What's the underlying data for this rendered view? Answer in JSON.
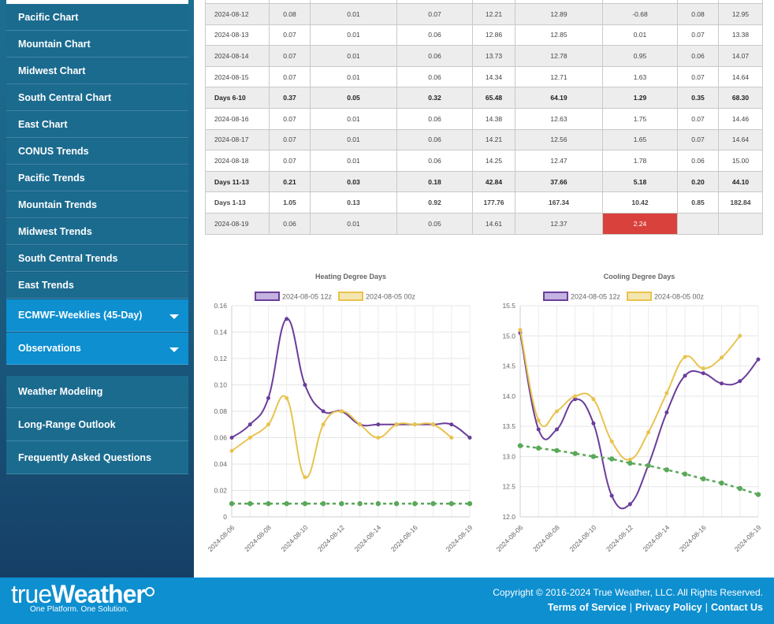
{
  "sidebar": {
    "chart_items": [
      "Pacific Chart",
      "Mountain Chart",
      "Midwest Chart",
      "South Central Chart",
      "East Chart",
      "CONUS Trends",
      "Pacific Trends",
      "Mountain Trends",
      "Midwest Trends",
      "South Central Trends",
      "East Trends"
    ],
    "accordions": [
      "ECMWF-Weeklies (45-Day)",
      "Observations"
    ],
    "links": [
      "Weather Modeling",
      "Long-Range Outlook",
      "Frequently Asked Questions"
    ]
  },
  "table": {
    "rows": [
      {
        "cells": [
          "2024-08-12",
          "0.08",
          "0.01",
          "0.07",
          "12.21",
          "12.89",
          "-0.68",
          "0.08",
          "12.95"
        ],
        "kind": "odd"
      },
      {
        "cells": [
          "2024-08-13",
          "0.07",
          "0.01",
          "0.06",
          "12.86",
          "12.85",
          "0.01",
          "0.07",
          "13.38"
        ],
        "kind": "even"
      },
      {
        "cells": [
          "2024-08-14",
          "0.07",
          "0.01",
          "0.06",
          "13.73",
          "12.78",
          "0.95",
          "0.06",
          "14.07"
        ],
        "kind": "odd"
      },
      {
        "cells": [
          "2024-08-15",
          "0.07",
          "0.01",
          "0.06",
          "14.34",
          "12.71",
          "1.63",
          "0.07",
          "14.64"
        ],
        "kind": "even"
      },
      {
        "cells": [
          "Days 6-10",
          "0.37",
          "0.05",
          "0.32",
          "65.48",
          "64.19",
          "1.29",
          "0.35",
          "68.30"
        ],
        "kind": "sum"
      },
      {
        "cells": [
          "2024-08-16",
          "0.07",
          "0.01",
          "0.06",
          "14.38",
          "12.63",
          "1.75",
          "0.07",
          "14.46"
        ],
        "kind": "even"
      },
      {
        "cells": [
          "2024-08-17",
          "0.07",
          "0.01",
          "0.06",
          "14.21",
          "12.56",
          "1.65",
          "0.07",
          "14.64"
        ],
        "kind": "odd"
      },
      {
        "cells": [
          "2024-08-18",
          "0.07",
          "0.01",
          "0.06",
          "14.25",
          "12.47",
          "1.78",
          "0.06",
          "15.00"
        ],
        "kind": "even"
      },
      {
        "cells": [
          "Days 11-13",
          "0.21",
          "0.03",
          "0.18",
          "42.84",
          "37.66",
          "5.18",
          "0.20",
          "44.10"
        ],
        "kind": "sum"
      },
      {
        "cells": [
          "Days 1-13",
          "1.05",
          "0.13",
          "0.92",
          "177.76",
          "167.34",
          "10.42",
          "0.85",
          "182.84"
        ],
        "kind": "even",
        "bold": true
      },
      {
        "cells": [
          "2024-08-19",
          "0.06",
          "0.01",
          "0.05",
          "14.61",
          "12.37",
          "2.24",
          "",
          ""
        ],
        "kind": "odd",
        "highlight_col": 6
      }
    ],
    "highlight_color": "#d9413d"
  },
  "chart_data": [
    {
      "type": "line",
      "title": "Heating Degree Days",
      "x": [
        "2024-08-06",
        "2024-08-07",
        "2024-08-08",
        "2024-08-09",
        "2024-08-10",
        "2024-08-11",
        "2024-08-12",
        "2024-08-13",
        "2024-08-14",
        "2024-08-15",
        "2024-08-16",
        "2024-08-17",
        "2024-08-18",
        "2024-08-19"
      ],
      "tick_labels": [
        "2024-08-06",
        "2024-08-08",
        "2024-08-10",
        "2024-08-12",
        "2024-08-14",
        "2024-08-16",
        "2024-08-19"
      ],
      "ylim": [
        0,
        0.16
      ],
      "yticks": [
        "0",
        "0.02",
        "0.04",
        "0.06",
        "0.08",
        "0.10",
        "0.12",
        "0.14",
        "0.16"
      ],
      "series": [
        {
          "name": "2024-08-05 12z",
          "color": "#6a3d9a",
          "fill": "#c3b3e0",
          "values": [
            0.06,
            0.07,
            0.09,
            0.15,
            0.1,
            0.08,
            0.08,
            0.07,
            0.07,
            0.07,
            0.07,
            0.07,
            0.07,
            0.06
          ]
        },
        {
          "name": "2024-08-05 00z",
          "color": "#e8c34f",
          "fill": "#f4e6b0",
          "values": [
            0.05,
            0.06,
            0.07,
            0.09,
            0.03,
            0.07,
            0.08,
            0.07,
            0.06,
            0.07,
            0.07,
            0.07,
            0.06,
            null
          ]
        },
        {
          "name": "",
          "color": "#5aa85a",
          "dashed": true,
          "values": [
            0.01,
            0.01,
            0.01,
            0.01,
            0.01,
            0.01,
            0.01,
            0.01,
            0.01,
            0.01,
            0.01,
            0.01,
            0.01,
            0.01
          ]
        }
      ]
    },
    {
      "type": "line",
      "title": "Cooling Degree Days",
      "x": [
        "2024-08-06",
        "2024-08-07",
        "2024-08-08",
        "2024-08-09",
        "2024-08-10",
        "2024-08-11",
        "2024-08-12",
        "2024-08-13",
        "2024-08-14",
        "2024-08-15",
        "2024-08-16",
        "2024-08-17",
        "2024-08-18",
        "2024-08-19"
      ],
      "tick_labels": [
        "2024-08-06",
        "2024-08-08",
        "2024-08-10",
        "2024-08-12",
        "2024-08-14",
        "2024-08-16",
        "2024-08-19"
      ],
      "ylim": [
        12.0,
        15.5
      ],
      "yticks": [
        "12.0",
        "12.5",
        "13.0",
        "13.5",
        "14.0",
        "14.5",
        "15.0",
        "15.5"
      ],
      "series": [
        {
          "name": "2024-08-05 12z",
          "color": "#6a3d9a",
          "fill": "#c3b3e0",
          "values": [
            15.05,
            13.45,
            13.45,
            13.95,
            13.55,
            12.35,
            12.21,
            12.86,
            13.73,
            14.34,
            14.38,
            14.21,
            14.25,
            14.61
          ]
        },
        {
          "name": "2024-08-05 00z",
          "color": "#e8c34f",
          "fill": "#f4e6b0",
          "values": [
            15.1,
            13.6,
            13.75,
            14.0,
            13.95,
            13.25,
            12.95,
            13.4,
            14.05,
            14.65,
            14.46,
            14.64,
            15.0,
            null
          ]
        },
        {
          "name": "",
          "color": "#5aa85a",
          "dashed": true,
          "values": [
            13.18,
            13.14,
            13.1,
            13.05,
            13.0,
            12.96,
            12.89,
            12.85,
            12.78,
            12.71,
            12.63,
            12.56,
            12.47,
            12.37
          ]
        }
      ]
    }
  ],
  "footer": {
    "logo_part1": "true",
    "logo_part2": "Weather",
    "tagline": "One Platform. One Solution.",
    "copyright": "Copyright © 2016-2024 True Weather, LLC. All Rights Reserved.",
    "links": [
      "Terms of Service",
      "Privacy Policy",
      "Contact Us"
    ],
    "link_separator": "|"
  },
  "colors": {
    "sidebar_bg": "#1b6b8f",
    "accent": "#0d8fd0"
  }
}
